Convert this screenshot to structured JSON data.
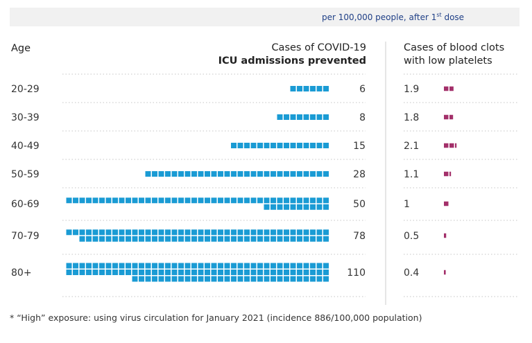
{
  "banner": {
    "text_before": "per 100,000 people, after 1",
    "text_sup": "st",
    "text_after": " dose"
  },
  "headers": {
    "age": "Age",
    "covid_line1": "Cases of COVID-19",
    "covid_line2": "ICU admissions prevented",
    "clots_line1": "Cases of blood clots",
    "clots_line2": "with low platelets"
  },
  "footnote": "* “High” exposure: using virus circulation for January 2021 (incidence 886/100,000 population)",
  "colors": {
    "icu": "#1a9bd4",
    "clots": "#a3306a",
    "divider": "#cccccc"
  },
  "chart_data": {
    "type": "table",
    "categories": [
      "20-29",
      "30-39",
      "40-49",
      "50-59",
      "60-69",
      "70-79",
      "80+"
    ],
    "series": [
      {
        "name": "Cases of COVID-19 ICU admissions prevented",
        "values": [
          6,
          8,
          15,
          28,
          50,
          78,
          110
        ],
        "labels": [
          "6",
          "8",
          "15",
          "28",
          "50",
          "78",
          "110"
        ]
      },
      {
        "name": "Cases of blood clots with low platelets",
        "values": [
          1.9,
          1.8,
          2.1,
          1.1,
          1,
          0.5,
          0.4
        ],
        "labels": [
          "1.9",
          "1.8",
          "2.1",
          "1.1",
          "1",
          "0.5",
          "0.4"
        ]
      }
    ]
  }
}
